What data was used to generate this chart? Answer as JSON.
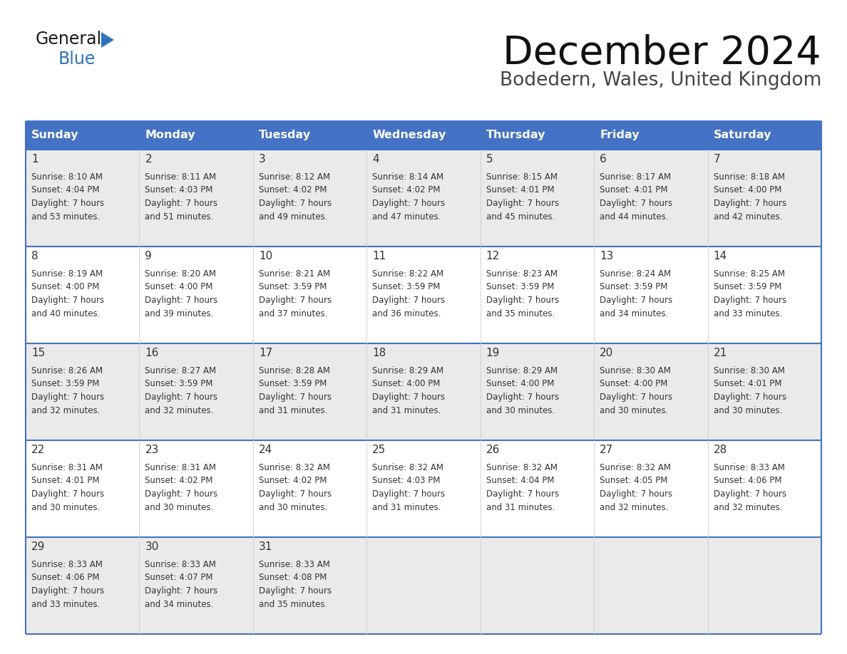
{
  "title": "December 2024",
  "subtitle": "Bodedern, Wales, United Kingdom",
  "header_color": "#4472C4",
  "header_text_color": "#FFFFFF",
  "day_names": [
    "Sunday",
    "Monday",
    "Tuesday",
    "Wednesday",
    "Thursday",
    "Friday",
    "Saturday"
  ],
  "cell_bg_color": "#FFFFFF",
  "cell_alt_bg_color": "#EAEAEA",
  "border_color": "#4472C4",
  "row_border_color": "#4472C4",
  "day_num_color": "#333333",
  "text_color": "#333333",
  "days": [
    {
      "day": 1,
      "col": 0,
      "row": 0,
      "sunrise": "8:10 AM",
      "sunset": "4:04 PM",
      "daylight_hours": 7,
      "daylight_minutes": 53
    },
    {
      "day": 2,
      "col": 1,
      "row": 0,
      "sunrise": "8:11 AM",
      "sunset": "4:03 PM",
      "daylight_hours": 7,
      "daylight_minutes": 51
    },
    {
      "day": 3,
      "col": 2,
      "row": 0,
      "sunrise": "8:12 AM",
      "sunset": "4:02 PM",
      "daylight_hours": 7,
      "daylight_minutes": 49
    },
    {
      "day": 4,
      "col": 3,
      "row": 0,
      "sunrise": "8:14 AM",
      "sunset": "4:02 PM",
      "daylight_hours": 7,
      "daylight_minutes": 47
    },
    {
      "day": 5,
      "col": 4,
      "row": 0,
      "sunrise": "8:15 AM",
      "sunset": "4:01 PM",
      "daylight_hours": 7,
      "daylight_minutes": 45
    },
    {
      "day": 6,
      "col": 5,
      "row": 0,
      "sunrise": "8:17 AM",
      "sunset": "4:01 PM",
      "daylight_hours": 7,
      "daylight_minutes": 44
    },
    {
      "day": 7,
      "col": 6,
      "row": 0,
      "sunrise": "8:18 AM",
      "sunset": "4:00 PM",
      "daylight_hours": 7,
      "daylight_minutes": 42
    },
    {
      "day": 8,
      "col": 0,
      "row": 1,
      "sunrise": "8:19 AM",
      "sunset": "4:00 PM",
      "daylight_hours": 7,
      "daylight_minutes": 40
    },
    {
      "day": 9,
      "col": 1,
      "row": 1,
      "sunrise": "8:20 AM",
      "sunset": "4:00 PM",
      "daylight_hours": 7,
      "daylight_minutes": 39
    },
    {
      "day": 10,
      "col": 2,
      "row": 1,
      "sunrise": "8:21 AM",
      "sunset": "3:59 PM",
      "daylight_hours": 7,
      "daylight_minutes": 37
    },
    {
      "day": 11,
      "col": 3,
      "row": 1,
      "sunrise": "8:22 AM",
      "sunset": "3:59 PM",
      "daylight_hours": 7,
      "daylight_minutes": 36
    },
    {
      "day": 12,
      "col": 4,
      "row": 1,
      "sunrise": "8:23 AM",
      "sunset": "3:59 PM",
      "daylight_hours": 7,
      "daylight_minutes": 35
    },
    {
      "day": 13,
      "col": 5,
      "row": 1,
      "sunrise": "8:24 AM",
      "sunset": "3:59 PM",
      "daylight_hours": 7,
      "daylight_minutes": 34
    },
    {
      "day": 14,
      "col": 6,
      "row": 1,
      "sunrise": "8:25 AM",
      "sunset": "3:59 PM",
      "daylight_hours": 7,
      "daylight_minutes": 33
    },
    {
      "day": 15,
      "col": 0,
      "row": 2,
      "sunrise": "8:26 AM",
      "sunset": "3:59 PM",
      "daylight_hours": 7,
      "daylight_minutes": 32
    },
    {
      "day": 16,
      "col": 1,
      "row": 2,
      "sunrise": "8:27 AM",
      "sunset": "3:59 PM",
      "daylight_hours": 7,
      "daylight_minutes": 32
    },
    {
      "day": 17,
      "col": 2,
      "row": 2,
      "sunrise": "8:28 AM",
      "sunset": "3:59 PM",
      "daylight_hours": 7,
      "daylight_minutes": 31
    },
    {
      "day": 18,
      "col": 3,
      "row": 2,
      "sunrise": "8:29 AM",
      "sunset": "4:00 PM",
      "daylight_hours": 7,
      "daylight_minutes": 31
    },
    {
      "day": 19,
      "col": 4,
      "row": 2,
      "sunrise": "8:29 AM",
      "sunset": "4:00 PM",
      "daylight_hours": 7,
      "daylight_minutes": 30
    },
    {
      "day": 20,
      "col": 5,
      "row": 2,
      "sunrise": "8:30 AM",
      "sunset": "4:00 PM",
      "daylight_hours": 7,
      "daylight_minutes": 30
    },
    {
      "day": 21,
      "col": 6,
      "row": 2,
      "sunrise": "8:30 AM",
      "sunset": "4:01 PM",
      "daylight_hours": 7,
      "daylight_minutes": 30
    },
    {
      "day": 22,
      "col": 0,
      "row": 3,
      "sunrise": "8:31 AM",
      "sunset": "4:01 PM",
      "daylight_hours": 7,
      "daylight_minutes": 30
    },
    {
      "day": 23,
      "col": 1,
      "row": 3,
      "sunrise": "8:31 AM",
      "sunset": "4:02 PM",
      "daylight_hours": 7,
      "daylight_minutes": 30
    },
    {
      "day": 24,
      "col": 2,
      "row": 3,
      "sunrise": "8:32 AM",
      "sunset": "4:02 PM",
      "daylight_hours": 7,
      "daylight_minutes": 30
    },
    {
      "day": 25,
      "col": 3,
      "row": 3,
      "sunrise": "8:32 AM",
      "sunset": "4:03 PM",
      "daylight_hours": 7,
      "daylight_minutes": 31
    },
    {
      "day": 26,
      "col": 4,
      "row": 3,
      "sunrise": "8:32 AM",
      "sunset": "4:04 PM",
      "daylight_hours": 7,
      "daylight_minutes": 31
    },
    {
      "day": 27,
      "col": 5,
      "row": 3,
      "sunrise": "8:32 AM",
      "sunset": "4:05 PM",
      "daylight_hours": 7,
      "daylight_minutes": 32
    },
    {
      "day": 28,
      "col": 6,
      "row": 3,
      "sunrise": "8:33 AM",
      "sunset": "4:06 PM",
      "daylight_hours": 7,
      "daylight_minutes": 32
    },
    {
      "day": 29,
      "col": 0,
      "row": 4,
      "sunrise": "8:33 AM",
      "sunset": "4:06 PM",
      "daylight_hours": 7,
      "daylight_minutes": 33
    },
    {
      "day": 30,
      "col": 1,
      "row": 4,
      "sunrise": "8:33 AM",
      "sunset": "4:07 PM",
      "daylight_hours": 7,
      "daylight_minutes": 34
    },
    {
      "day": 31,
      "col": 2,
      "row": 4,
      "sunrise": "8:33 AM",
      "sunset": "4:08 PM",
      "daylight_hours": 7,
      "daylight_minutes": 35
    }
  ],
  "num_weeks": 5,
  "logo_text_general": "General",
  "logo_text_blue": "Blue",
  "logo_color_general": "#1a1a1a",
  "logo_color_blue": "#2e75b6",
  "logo_triangle_color": "#2e75b6"
}
